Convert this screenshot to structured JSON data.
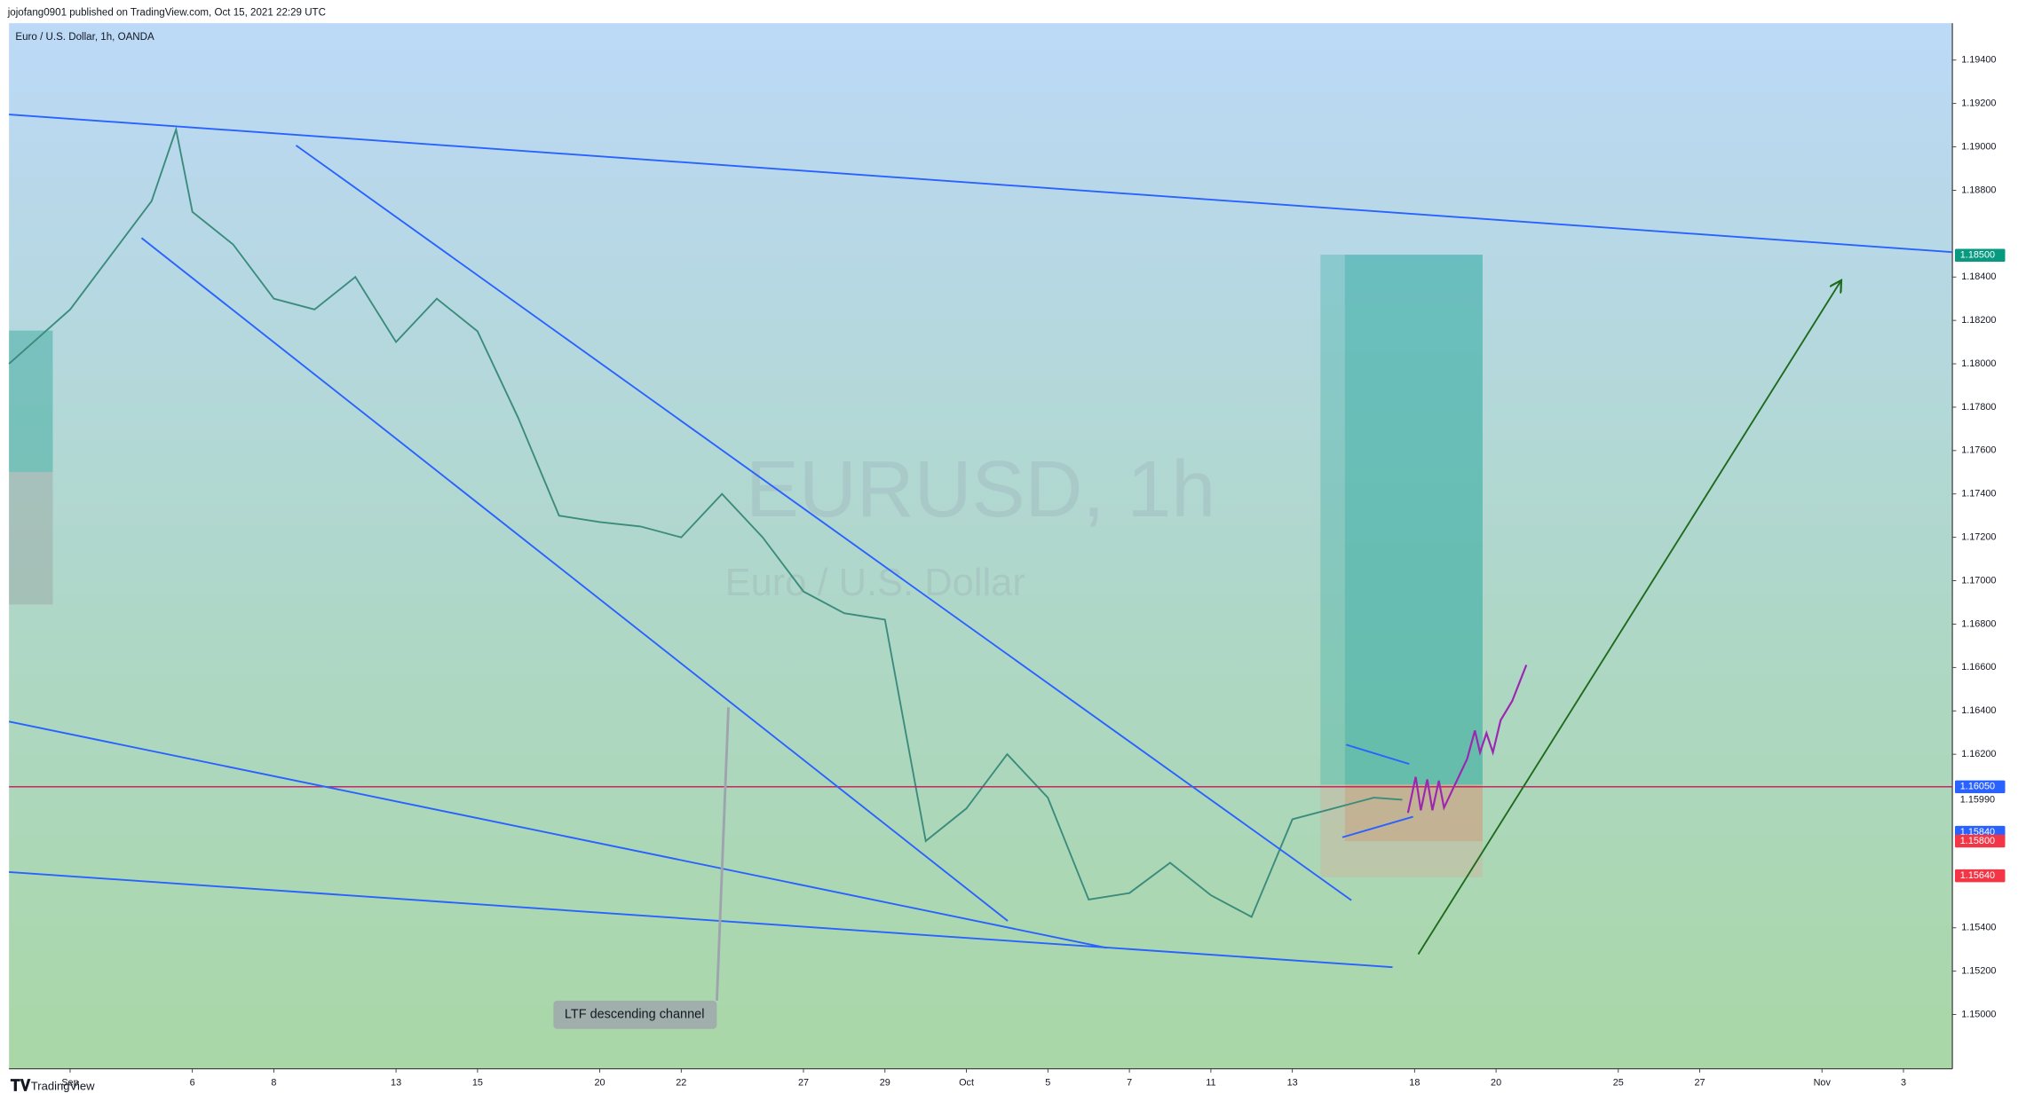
{
  "header": "jojofang0901 published on TradingView.com, Oct 15, 2021 22:29 UTC",
  "footer": "TradingView",
  "chart_data": {
    "type": "line",
    "title": "Euro / U.S. Dollar, 1h, OANDA",
    "watermark": "EURUSD, 1h",
    "watermark_subtitle": "Euro / U.S. Dollar",
    "annotation": "LTF descending channel",
    "color": "#3b8c7c",
    "x": [
      -1.5,
      0,
      1,
      2,
      2.6,
      3,
      4,
      5,
      6,
      7,
      8,
      9,
      10,
      11,
      12,
      13,
      14,
      15,
      16,
      17,
      18,
      19,
      20,
      21,
      22,
      23,
      24,
      25,
      26,
      27,
      28,
      29,
      30,
      31,
      32,
      32.7
    ],
    "values": [
      1.18,
      1.1825,
      1.185,
      1.1875,
      1.1908,
      1.187,
      1.1855,
      1.183,
      1.1825,
      1.184,
      1.181,
      1.183,
      1.1815,
      1.1775,
      1.173,
      1.1727,
      1.1725,
      1.172,
      1.174,
      1.172,
      1.1695,
      1.1685,
      1.1682,
      1.158,
      1.1595,
      1.162,
      1.16,
      1.1553,
      1.1556,
      1.157,
      1.1555,
      1.1545,
      1.159,
      1.1595,
      1.16,
      1.1599
    ],
    "xlim": [
      -1.5,
      46.2
    ],
    "xticks": [
      {
        "value": 0,
        "label": "Sep"
      },
      {
        "value": 3,
        "label": "6"
      },
      {
        "value": 5,
        "label": "8"
      },
      {
        "value": 8,
        "label": "13"
      },
      {
        "value": 10,
        "label": "15"
      },
      {
        "value": 13,
        "label": "20"
      },
      {
        "value": 15,
        "label": "22"
      },
      {
        "value": 18,
        "label": "27"
      },
      {
        "value": 20,
        "label": "29"
      },
      {
        "value": 22,
        "label": "Oct"
      },
      {
        "value": 24,
        "label": "5"
      },
      {
        "value": 26,
        "label": "7"
      },
      {
        "value": 28,
        "label": "11"
      },
      {
        "value": 30,
        "label": "13"
      },
      {
        "value": 33,
        "label": "18"
      },
      {
        "value": 35,
        "label": "20"
      },
      {
        "value": 38,
        "label": "25"
      },
      {
        "value": 40,
        "label": "27"
      },
      {
        "value": 43,
        "label": "Nov"
      },
      {
        "value": 45,
        "label": "3"
      }
    ],
    "ylim": [
      1.1475,
      1.1957
    ],
    "yticks": [
      {
        "value": 1.15,
        "label": "1.15000"
      },
      {
        "value": 1.152,
        "label": "1.15200"
      },
      {
        "value": 1.154,
        "label": "1.15400"
      },
      {
        "value": 1.162,
        "label": "1.16200"
      },
      {
        "value": 1.164,
        "label": "1.16400"
      },
      {
        "value": 1.166,
        "label": "1.16600"
      },
      {
        "value": 1.168,
        "label": "1.16800"
      },
      {
        "value": 1.17,
        "label": "1.17000"
      },
      {
        "value": 1.172,
        "label": "1.17200"
      },
      {
        "value": 1.174,
        "label": "1.17400"
      },
      {
        "value": 1.176,
        "label": "1.17600"
      },
      {
        "value": 1.178,
        "label": "1.17800"
      },
      {
        "value": 1.18,
        "label": "1.18000"
      },
      {
        "value": 1.182,
        "label": "1.18200"
      },
      {
        "value": 1.184,
        "label": "1.18400"
      },
      {
        "value": 1.188,
        "label": "1.18800"
      },
      {
        "value": 1.19,
        "label": "1.19000"
      },
      {
        "value": 1.192,
        "label": "1.19200"
      },
      {
        "value": 1.194,
        "label": "1.19400"
      }
    ],
    "price_labels": [
      {
        "value": 1.185,
        "label": "1.18500",
        "color": "#089981"
      },
      {
        "value": 1.1605,
        "label": "1.16050",
        "color": "#2962ff"
      },
      {
        "value": 1.1599,
        "label": "1.15990",
        "color": "#ffffff"
      },
      {
        "value": 1.1584,
        "label": "1.15840",
        "color": "#2962ff"
      },
      {
        "value": 1.158,
        "label": "1.15800",
        "color": "#f23645"
      },
      {
        "value": 1.1564,
        "label": "1.15640",
        "color": "#f23645"
      }
    ],
    "price_line_color": "#c2185b"
  }
}
